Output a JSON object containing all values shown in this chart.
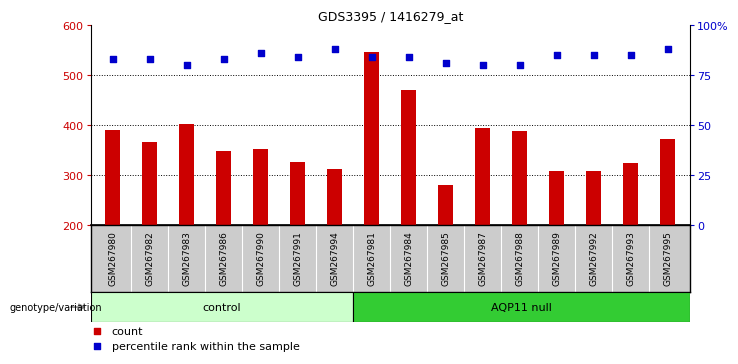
{
  "title": "GDS3395 / 1416279_at",
  "categories": [
    "GSM267980",
    "GSM267982",
    "GSM267983",
    "GSM267986",
    "GSM267990",
    "GSM267991",
    "GSM267994",
    "GSM267981",
    "GSM267984",
    "GSM267985",
    "GSM267987",
    "GSM267988",
    "GSM267989",
    "GSM267992",
    "GSM267993",
    "GSM267995"
  ],
  "bar_values": [
    390,
    365,
    402,
    348,
    352,
    325,
    312,
    545,
    470,
    280,
    393,
    388,
    307,
    307,
    323,
    372
  ],
  "pct_values": [
    83,
    83,
    80,
    83,
    86,
    84,
    88,
    84,
    84,
    81,
    80,
    80,
    85,
    85,
    85,
    88
  ],
  "ylim_left": [
    200,
    600
  ],
  "ylim_right": [
    0,
    100
  ],
  "yticks_left": [
    200,
    300,
    400,
    500,
    600
  ],
  "yticks_right": [
    0,
    25,
    50,
    75,
    100
  ],
  "bar_color": "#cc0000",
  "dot_color": "#0000cc",
  "control_count": 7,
  "control_label": "control",
  "aqp_label": "AQP11 null",
  "control_color": "#ccffcc",
  "aqp_color": "#33cc33",
  "genotype_label": "genotype/variation",
  "legend_count": "count",
  "legend_pct": "percentile rank within the sample",
  "grid_values": [
    300,
    400,
    500
  ],
  "background_color": "#ffffff",
  "bar_color_left": "#cc0000",
  "ylabel_right_color": "#0000cc",
  "bar_width": 0.4,
  "dot_size": 20,
  "label_bg": "#cccccc"
}
